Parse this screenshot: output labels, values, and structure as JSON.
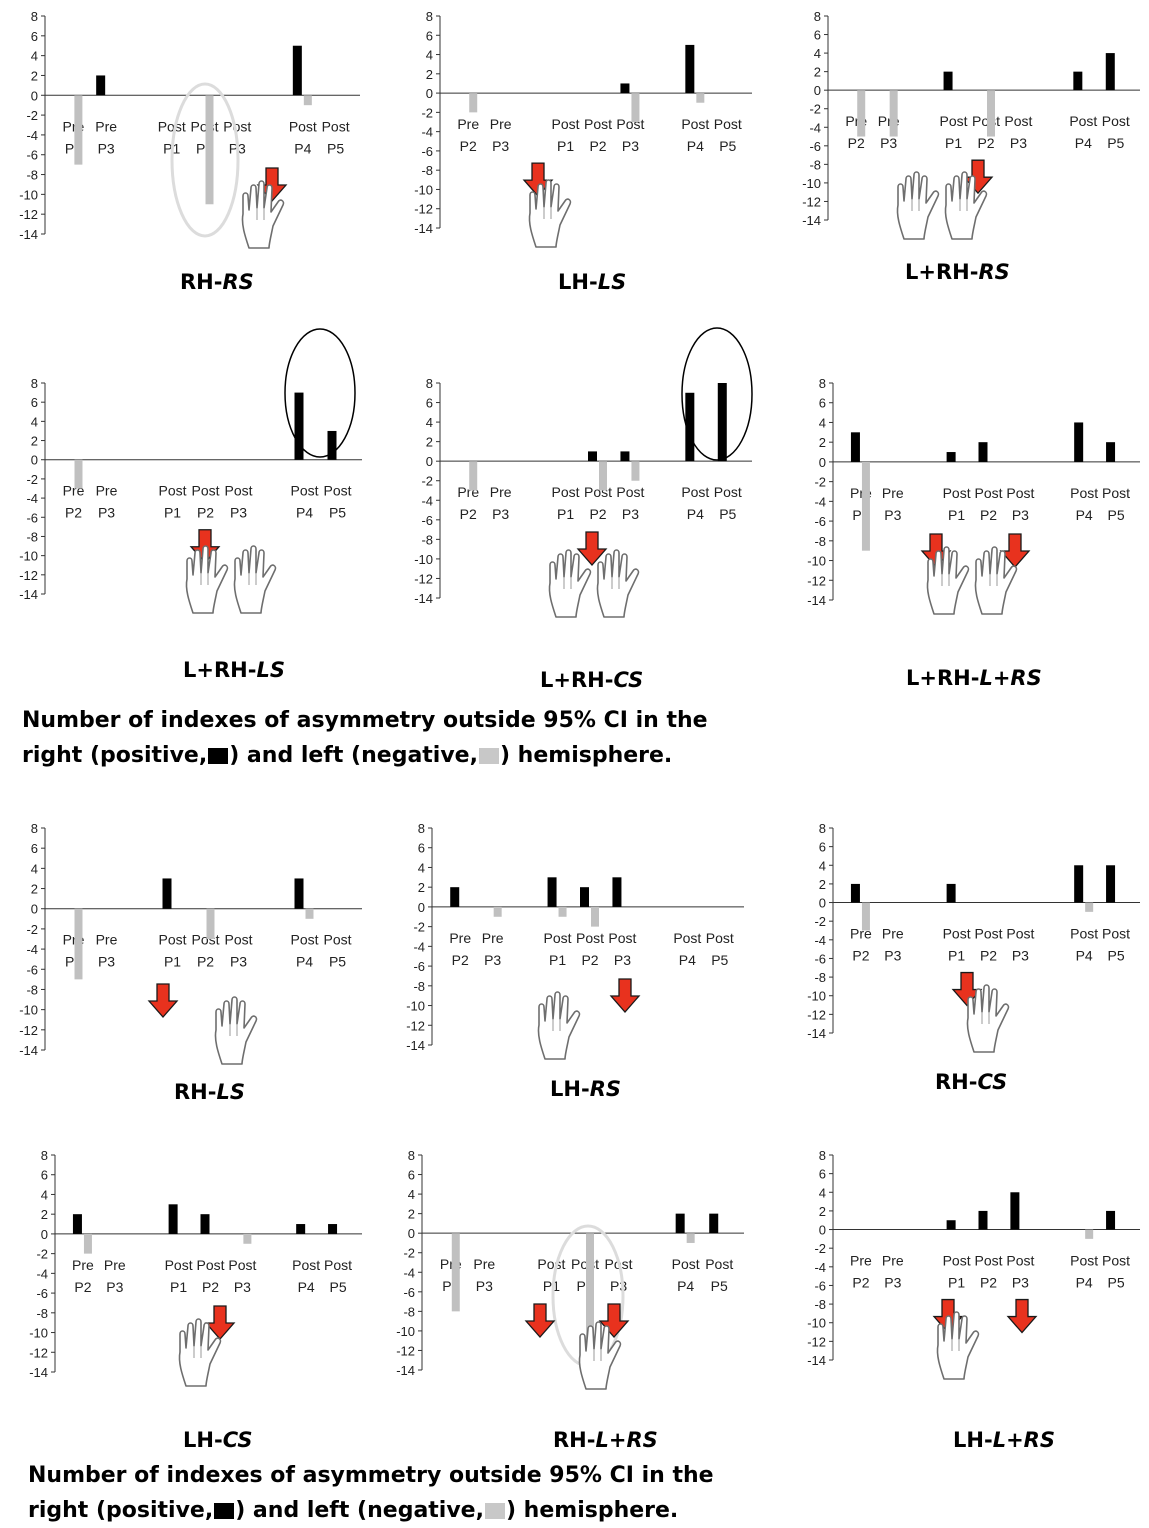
{
  "colors": {
    "positive": "#000000",
    "negative": "#c0c0c0",
    "arrow": "#e8321e",
    "ellipse_dark": "#000000",
    "ellipse_light": "#dcdcdc"
  },
  "captions": [
    {
      "line1": "Number of indexes of asymmetry outside 95% CI in the",
      "line2_a": "right (positive,",
      "line2_b": ") and left (negative,",
      "line2_c": ") hemisphere."
    },
    {
      "line1": "Number of indexes of asymmetry outside 95% CI in the",
      "line2_a": "right (positive,",
      "line2_b": ") and left (negative,",
      "line2_c": ") hemisphere."
    }
  ],
  "chart_data": [
    {
      "type": "bar",
      "title_bold": "RH-",
      "title_italic": "RS",
      "categories": [
        [
          "Pre",
          "P2"
        ],
        [
          "Pre",
          "P3"
        ],
        [
          "Post",
          "P1"
        ],
        [
          "Post",
          "P2"
        ],
        [
          "Post",
          "P3"
        ],
        [
          "Post",
          "P4"
        ],
        [
          "Post",
          "P5"
        ]
      ],
      "series": [
        {
          "values": [
            0,
            2,
            0,
            0,
            0,
            5,
            0
          ]
        },
        {
          "values": [
            -7,
            0,
            0,
            -11,
            0,
            -1,
            0
          ]
        }
      ],
      "ylim": [
        -14,
        8
      ],
      "yticks": [
        8,
        6,
        4,
        2,
        0,
        -2,
        -4,
        -6,
        -8,
        -10,
        -12,
        -14
      ],
      "icons": [
        "hand-icon"
      ],
      "arrows": 1,
      "highlight": "light-ellipse"
    },
    {
      "type": "bar",
      "title_bold": "LH-",
      "title_italic": "LS",
      "categories": [
        [
          "Pre",
          "P2"
        ],
        [
          "Pre",
          "P3"
        ],
        [
          "Post",
          "P1"
        ],
        [
          "Post",
          "P2"
        ],
        [
          "Post",
          "P3"
        ],
        [
          "Post",
          "P4"
        ],
        [
          "Post",
          "P5"
        ]
      ],
      "series": [
        {
          "values": [
            0,
            0,
            0,
            0,
            1,
            5,
            0
          ]
        },
        {
          "values": [
            -2,
            0,
            0,
            0,
            -3,
            -1,
            0
          ]
        }
      ],
      "ylim": [
        -14,
        8
      ],
      "yticks": [
        8,
        6,
        4,
        2,
        0,
        -2,
        -4,
        -6,
        -8,
        -10,
        -12,
        -14
      ],
      "icons": [
        "hand-icon"
      ],
      "arrows": 1
    },
    {
      "type": "bar",
      "title_bold": "L+RH-",
      "title_italic": "RS",
      "categories": [
        [
          "Pre",
          "P2"
        ],
        [
          "Pre",
          "P3"
        ],
        [
          "Post",
          "P1"
        ],
        [
          "Post",
          "P2"
        ],
        [
          "Post",
          "P3"
        ],
        [
          "Post",
          "P4"
        ],
        [
          "Post",
          "P5"
        ]
      ],
      "series": [
        {
          "values": [
            0,
            0,
            2,
            0,
            0,
            2,
            4
          ]
        },
        {
          "values": [
            -5,
            -5,
            0,
            -5,
            0,
            0,
            0
          ]
        }
      ],
      "ylim": [
        -14,
        8
      ],
      "yticks": [
        8,
        6,
        4,
        2,
        0,
        -2,
        -4,
        -6,
        -8,
        -10,
        -12,
        -14
      ],
      "icons": [
        "hand-icon",
        "hand-icon"
      ],
      "arrows": 1
    },
    {
      "type": "bar",
      "title_bold": "L+RH-",
      "title_italic": "LS",
      "categories": [
        [
          "Pre",
          "P2"
        ],
        [
          "Pre",
          "P3"
        ],
        [
          "Post",
          "P1"
        ],
        [
          "Post",
          "P2"
        ],
        [
          "Post",
          "P3"
        ],
        [
          "Post",
          "P4"
        ],
        [
          "Post",
          "P5"
        ]
      ],
      "series": [
        {
          "values": [
            0,
            0,
            0,
            0,
            0,
            7,
            3
          ]
        },
        {
          "values": [
            -3,
            0,
            0,
            0,
            0,
            0,
            0
          ]
        }
      ],
      "ylim": [
        -14,
        8
      ],
      "yticks": [
        8,
        6,
        4,
        2,
        0,
        -2,
        -4,
        -6,
        -8,
        -10,
        -12,
        -14
      ],
      "icons": [
        "hand-icon",
        "hand-icon"
      ],
      "arrows": 1,
      "highlight": "dark-ellipse"
    },
    {
      "type": "bar",
      "title_bold": "L+RH-",
      "title_italic": "CS",
      "categories": [
        [
          "Pre",
          "P2"
        ],
        [
          "Pre",
          "P3"
        ],
        [
          "Post",
          "P1"
        ],
        [
          "Post",
          "P2"
        ],
        [
          "Post",
          "P3"
        ],
        [
          "Post",
          "P4"
        ],
        [
          "Post",
          "P5"
        ]
      ],
      "series": [
        {
          "values": [
            0,
            0,
            0,
            1,
            1,
            7,
            8
          ]
        },
        {
          "values": [
            -3,
            0,
            0,
            -3,
            -2,
            0,
            0
          ]
        }
      ],
      "ylim": [
        -14,
        8
      ],
      "yticks": [
        8,
        6,
        4,
        2,
        0,
        -2,
        -4,
        -6,
        -8,
        -10,
        -12,
        -14
      ],
      "icons": [
        "hand-icon",
        "hand-icon"
      ],
      "arrows": 1,
      "highlight": "dark-ellipse"
    },
    {
      "type": "bar",
      "title_bold": "L+RH-",
      "title_italic": "L+RS",
      "categories": [
        [
          "Pre",
          "P2"
        ],
        [
          "Pre",
          "P3"
        ],
        [
          "Post",
          "P1"
        ],
        [
          "Post",
          "P2"
        ],
        [
          "Post",
          "P3"
        ],
        [
          "Post",
          "P4"
        ],
        [
          "Post",
          "P5"
        ]
      ],
      "series": [
        {
          "values": [
            3,
            0,
            1,
            2,
            0,
            4,
            2
          ]
        },
        {
          "values": [
            -9,
            0,
            0,
            0,
            0,
            0,
            0
          ]
        }
      ],
      "ylim": [
        -14,
        8
      ],
      "yticks": [
        8,
        6,
        4,
        2,
        0,
        -2,
        -4,
        -6,
        -8,
        -10,
        -12,
        -14
      ],
      "icons": [
        "hand-icon",
        "hand-icon"
      ],
      "arrows": 2
    },
    {
      "type": "bar",
      "title_bold": "RH-",
      "title_italic": "LS",
      "categories": [
        [
          "Pre",
          "P2"
        ],
        [
          "Pre",
          "P3"
        ],
        [
          "Post",
          "P1"
        ],
        [
          "Post",
          "P2"
        ],
        [
          "Post",
          "P3"
        ],
        [
          "Post",
          "P4"
        ],
        [
          "Post",
          "P5"
        ]
      ],
      "series": [
        {
          "values": [
            0,
            0,
            3,
            0,
            0,
            3,
            0
          ]
        },
        {
          "values": [
            -7,
            0,
            0,
            -3,
            0,
            -1,
            0
          ]
        }
      ],
      "ylim": [
        -14,
        8
      ],
      "yticks": [
        8,
        6,
        4,
        2,
        0,
        -2,
        -4,
        -6,
        -8,
        -10,
        -12,
        -14
      ],
      "icons": [
        "hand-icon"
      ],
      "arrows": 1
    },
    {
      "type": "bar",
      "title_bold": "LH-",
      "title_italic": "RS",
      "categories": [
        [
          "Pre",
          "P2"
        ],
        [
          "Pre",
          "P3"
        ],
        [
          "Post",
          "P1"
        ],
        [
          "Post",
          "P2"
        ],
        [
          "Post",
          "P3"
        ],
        [
          "Post",
          "P4"
        ],
        [
          "Post",
          "P5"
        ]
      ],
      "series": [
        {
          "values": [
            2,
            0,
            3,
            2,
            3,
            0,
            0
          ]
        },
        {
          "values": [
            0,
            -1,
            -1,
            -2,
            0,
            0,
            0
          ]
        }
      ],
      "ylim": [
        -14,
        8
      ],
      "yticks": [
        8,
        6,
        4,
        2,
        0,
        -2,
        -4,
        -6,
        -8,
        -10,
        -12,
        -14
      ],
      "icons": [
        "hand-icon"
      ],
      "arrows": 1
    },
    {
      "type": "bar",
      "title_bold": "RH-",
      "title_italic": "CS",
      "categories": [
        [
          "Pre",
          "P2"
        ],
        [
          "Pre",
          "P3"
        ],
        [
          "Post",
          "P1"
        ],
        [
          "Post",
          "P2"
        ],
        [
          "Post",
          "P3"
        ],
        [
          "Post",
          "P4"
        ],
        [
          "Post",
          "P5"
        ]
      ],
      "series": [
        {
          "values": [
            2,
            0,
            2,
            0,
            0,
            4,
            4
          ]
        },
        {
          "values": [
            -3,
            0,
            0,
            0,
            0,
            -1,
            0
          ]
        }
      ],
      "ylim": [
        -14,
        8
      ],
      "yticks": [
        8,
        6,
        4,
        2,
        0,
        -2,
        -4,
        -6,
        -8,
        -10,
        -12,
        -14
      ],
      "icons": [
        "hand-icon"
      ],
      "arrows": 1
    },
    {
      "type": "bar",
      "title_bold": "LH-",
      "title_italic": "CS",
      "categories": [
        [
          "Pre",
          "P2"
        ],
        [
          "Pre",
          "P3"
        ],
        [
          "Post",
          "P1"
        ],
        [
          "Post",
          "P2"
        ],
        [
          "Post",
          "P3"
        ],
        [
          "Post",
          "P4"
        ],
        [
          "Post",
          "P5"
        ]
      ],
      "series": [
        {
          "values": [
            2,
            0,
            3,
            2,
            0,
            1,
            1
          ]
        },
        {
          "values": [
            -2,
            0,
            0,
            0,
            -1,
            0,
            0
          ]
        }
      ],
      "ylim": [
        -14,
        8
      ],
      "yticks": [
        8,
        6,
        4,
        2,
        0,
        -2,
        -4,
        -6,
        -8,
        -10,
        -12,
        -14
      ],
      "icons": [
        "hand-icon"
      ],
      "arrows": 1
    },
    {
      "type": "bar",
      "title_bold": "RH-",
      "title_italic": "L+RS",
      "categories": [
        [
          "Pre",
          "P2"
        ],
        [
          "Pre",
          "P3"
        ],
        [
          "Post",
          "P1"
        ],
        [
          "Post",
          "P2"
        ],
        [
          "Post",
          "P3"
        ],
        [
          "Post",
          "P4"
        ],
        [
          "Post",
          "P5"
        ]
      ],
      "series": [
        {
          "values": [
            0,
            0,
            0,
            0,
            0,
            2,
            2
          ]
        },
        {
          "values": [
            -8,
            0,
            0,
            -14,
            0,
            -1,
            0
          ]
        }
      ],
      "ylim": [
        -14,
        8
      ],
      "yticks": [
        8,
        6,
        4,
        2,
        0,
        -2,
        -4,
        -6,
        -8,
        -10,
        -12,
        -14
      ],
      "icons": [
        "hand-icon"
      ],
      "arrows": 2,
      "highlight": "light-ellipse"
    },
    {
      "type": "bar",
      "title_bold": "LH-",
      "title_italic": "L+RS",
      "categories": [
        [
          "Pre",
          "P2"
        ],
        [
          "Pre",
          "P3"
        ],
        [
          "Post",
          "P1"
        ],
        [
          "Post",
          "P2"
        ],
        [
          "Post",
          "P3"
        ],
        [
          "Post",
          "P4"
        ],
        [
          "Post",
          "P5"
        ]
      ],
      "series": [
        {
          "values": [
            0,
            0,
            1,
            2,
            4,
            0,
            2
          ]
        },
        {
          "values": [
            0,
            0,
            0,
            0,
            0,
            -1,
            0
          ]
        }
      ],
      "ylim": [
        -14,
        8
      ],
      "yticks": [
        8,
        6,
        4,
        2,
        0,
        -2,
        -4,
        -6,
        -8,
        -10,
        -12,
        -14
      ],
      "icons": [
        "hand-icon"
      ],
      "arrows": 2
    }
  ]
}
